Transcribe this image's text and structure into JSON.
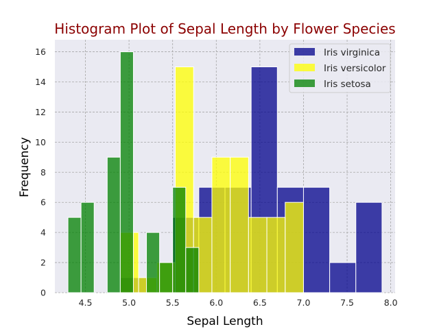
{
  "chart_data": {
    "type": "bar",
    "title": "Histogram Plot of Sepal Length by Flower Species",
    "xlabel": "Sepal Length",
    "ylabel": "Frequency",
    "xlim": [
      4.15,
      8.05
    ],
    "ylim": [
      0,
      16.8
    ],
    "xticks": [
      4.5,
      5.0,
      5.5,
      6.0,
      6.5,
      7.0,
      7.5,
      8.0
    ],
    "xtick_labels": [
      "4.5",
      "5.0",
      "5.5",
      "6.0",
      "6.5",
      "7.0",
      "7.5",
      "8.0"
    ],
    "yticks": [
      0,
      2,
      4,
      6,
      8,
      10,
      12,
      14,
      16
    ],
    "ytick_labels": [
      "0",
      "2",
      "4",
      "6",
      "8",
      "10",
      "12",
      "14",
      "16"
    ],
    "grid": true,
    "legend_position": "top-right",
    "series": [
      {
        "name": "Iris virginica",
        "color": "#00008b",
        "opacity": 0.75,
        "bins": [
          {
            "x0": 4.9,
            "x1": 5.2,
            "value": 1
          },
          {
            "x0": 5.2,
            "x1": 5.5,
            "value": 0
          },
          {
            "x0": 5.5,
            "x1": 5.8,
            "value": 5
          },
          {
            "x0": 5.8,
            "x1": 6.1,
            "value": 7
          },
          {
            "x0": 6.1,
            "x1": 6.4,
            "value": 7
          },
          {
            "x0": 6.4,
            "x1": 6.7,
            "value": 15
          },
          {
            "x0": 6.7,
            "x1": 7.0,
            "value": 7
          },
          {
            "x0": 7.0,
            "x1": 7.3,
            "value": 7
          },
          {
            "x0": 7.3,
            "x1": 7.6,
            "value": 2
          },
          {
            "x0": 7.6,
            "x1": 7.9,
            "value": 6
          }
        ]
      },
      {
        "name": "Iris versicolor",
        "color": "#ffff00",
        "opacity": 0.75,
        "bins": [
          {
            "x0": 4.9,
            "x1": 5.11,
            "value": 4
          },
          {
            "x0": 5.11,
            "x1": 5.32,
            "value": 1
          },
          {
            "x0": 5.32,
            "x1": 5.53,
            "value": 2
          },
          {
            "x0": 5.53,
            "x1": 5.74,
            "value": 15
          },
          {
            "x0": 5.74,
            "x1": 5.95,
            "value": 5
          },
          {
            "x0": 5.95,
            "x1": 6.16,
            "value": 9
          },
          {
            "x0": 6.16,
            "x1": 6.37,
            "value": 9
          },
          {
            "x0": 6.37,
            "x1": 6.58,
            "value": 5
          },
          {
            "x0": 6.58,
            "x1": 6.79,
            "value": 5
          },
          {
            "x0": 6.79,
            "x1": 7.0,
            "value": 6
          }
        ]
      },
      {
        "name": "Iris setosa",
        "color": "#008000",
        "opacity": 0.75,
        "bins": [
          {
            "x0": 4.3,
            "x1": 4.45,
            "value": 5
          },
          {
            "x0": 4.45,
            "x1": 4.6,
            "value": 6
          },
          {
            "x0": 4.6,
            "x1": 4.75,
            "value": 0
          },
          {
            "x0": 4.75,
            "x1": 4.9,
            "value": 9
          },
          {
            "x0": 4.9,
            "x1": 5.05,
            "value": 16
          },
          {
            "x0": 5.05,
            "x1": 5.2,
            "value": 0
          },
          {
            "x0": 5.2,
            "x1": 5.35,
            "value": 4
          },
          {
            "x0": 5.35,
            "x1": 5.5,
            "value": 2
          },
          {
            "x0": 5.5,
            "x1": 5.65,
            "value": 7
          },
          {
            "x0": 5.65,
            "x1": 5.8,
            "value": 3
          }
        ]
      }
    ]
  }
}
